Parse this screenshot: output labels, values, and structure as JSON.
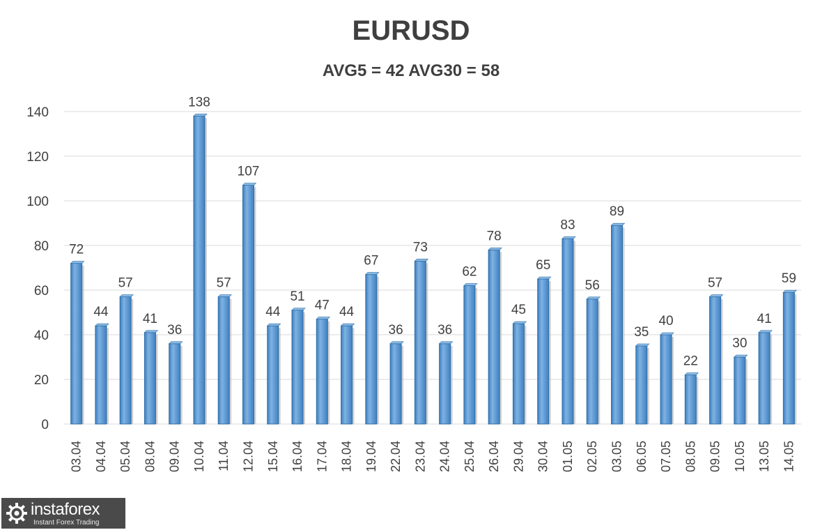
{
  "chart_data": {
    "type": "bar",
    "title": "EURUSD",
    "subtitle": "AVG5 = 42 AVG30 = 58",
    "categories": [
      "03.04",
      "04.04",
      "05.04",
      "08.04",
      "09.04",
      "10.04",
      "11.04",
      "12.04",
      "15.04",
      "16.04",
      "17.04",
      "18.04",
      "19.04",
      "22.04",
      "23.04",
      "24.04",
      "25.04",
      "26.04",
      "29.04",
      "30.04",
      "01.05",
      "02.05",
      "03.05",
      "06.05",
      "07.05",
      "08.05",
      "09.05",
      "10.05",
      "13.05",
      "14.05"
    ],
    "values": [
      72,
      44,
      57,
      41,
      36,
      138,
      57,
      107,
      44,
      51,
      47,
      44,
      67,
      36,
      73,
      36,
      62,
      78,
      45,
      65,
      83,
      56,
      89,
      35,
      40,
      22,
      57,
      30,
      41,
      59
    ],
    "ylim": [
      0,
      140
    ],
    "yticks": [
      0,
      20,
      40,
      60,
      80,
      100,
      120,
      140
    ],
    "grid": true,
    "data_labels": true,
    "colors": {
      "bar": "#5b9bd5",
      "bar_dark": "#2e6da4",
      "bar_light": "#8dbbe6",
      "grid": "#d9d9d9",
      "text": "#404040"
    }
  },
  "watermark": {
    "name": "instaforex",
    "tagline": "Instant Forex Trading"
  }
}
